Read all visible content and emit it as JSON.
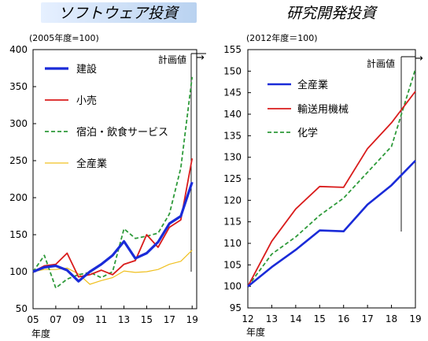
{
  "chart_data": [
    {
      "type": "line",
      "title": "ソフトウェア投資",
      "index_note": "(2005年度=100)",
      "xlabel": "年度",
      "plan_label": "計画値",
      "plan_arrow": "→",
      "ylim": [
        50,
        400
      ],
      "yticks": [
        50,
        100,
        150,
        200,
        250,
        300,
        350,
        400
      ],
      "x": [
        5,
        6,
        7,
        8,
        9,
        10,
        11,
        12,
        13,
        14,
        15,
        16,
        17,
        18,
        19
      ],
      "xticks": [
        "05",
        "07",
        "09",
        "11",
        "13",
        "15",
        "17",
        "19"
      ],
      "xtick_values": [
        5,
        7,
        9,
        11,
        13,
        15,
        17,
        19
      ],
      "plan_x": 18.5,
      "series": [
        {
          "name": "建設",
          "color": "#1a2bd8",
          "dash": "",
          "width": 3.2,
          "values": [
            100,
            106,
            108,
            102,
            87,
            100,
            110,
            122,
            141,
            118,
            125,
            140,
            165,
            175,
            221
          ]
        },
        {
          "name": "小売",
          "color": "#d91c1c",
          "dash": "",
          "width": 1.8,
          "values": [
            100,
            108,
            110,
            125,
            93,
            96,
            102,
            96,
            110,
            115,
            150,
            133,
            160,
            170,
            253
          ]
        },
        {
          "name": "宿泊・飲食サービス",
          "color": "#2e9a3a",
          "dash": "5,3",
          "width": 1.8,
          "values": [
            100,
            122,
            78,
            90,
            96,
            99,
            92,
            100,
            158,
            145,
            148,
            152,
            178,
            240,
            363
          ]
        },
        {
          "name": "全産業",
          "color": "#f0c020",
          "dash": "",
          "width": 1.2,
          "values": [
            100,
            103,
            103,
            105,
            97,
            83,
            88,
            92,
            101,
            99,
            100,
            103,
            110,
            114,
            129
          ]
        }
      ]
    },
    {
      "type": "line",
      "title": "研究開発投資",
      "index_note": "(2012年度＝100)",
      "xlabel": "年度",
      "plan_label": "計画値",
      "plan_arrow": "→",
      "ylim": [
        95,
        155
      ],
      "yticks": [
        95,
        100,
        105,
        110,
        115,
        120,
        125,
        130,
        135,
        140,
        145,
        150,
        155
      ],
      "x": [
        12,
        13,
        14,
        15,
        16,
        17,
        18,
        19
      ],
      "xticks": [
        "12",
        "13",
        "14",
        "15",
        "16",
        "17",
        "18",
        "19"
      ],
      "xtick_values": [
        12,
        13,
        14,
        15,
        16,
        17,
        18,
        19
      ],
      "plan_x": 18.5,
      "series": [
        {
          "name": "全産業",
          "color": "#1a2bd8",
          "dash": "",
          "width": 2.6,
          "values": [
            100,
            104.5,
            108.5,
            113,
            112.8,
            119,
            123.5,
            129.2
          ]
        },
        {
          "name": "輸送用機械",
          "color": "#d91c1c",
          "dash": "",
          "width": 1.8,
          "values": [
            100,
            110.5,
            118,
            123.2,
            123,
            132,
            138,
            145.3
          ]
        },
        {
          "name": "化学",
          "color": "#2e9a3a",
          "dash": "5,3",
          "width": 1.8,
          "values": [
            100,
            107.5,
            111.5,
            116.5,
            120.5,
            126.5,
            132.5,
            150.5
          ]
        }
      ]
    }
  ]
}
